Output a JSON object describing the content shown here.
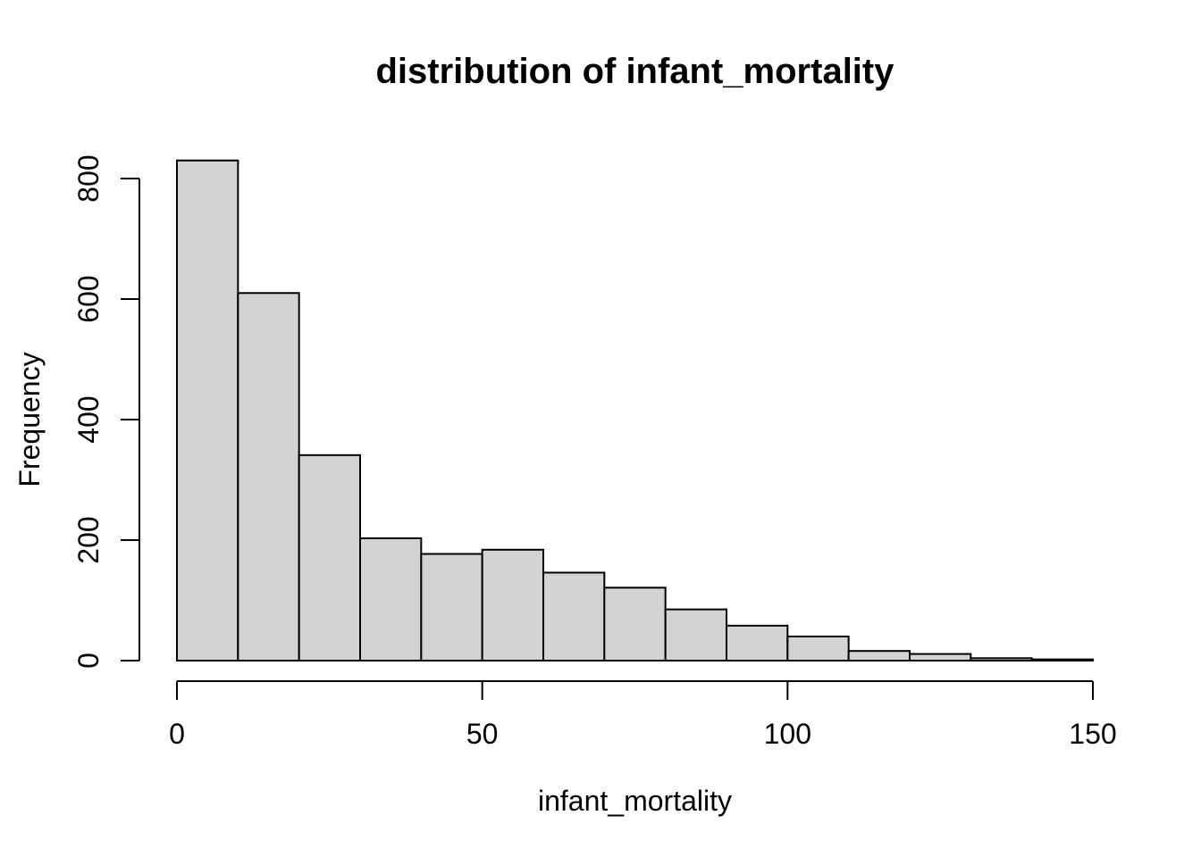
{
  "chart_data": {
    "type": "bar",
    "subtype": "histogram",
    "title": "distribution of infant_mortality",
    "xlabel": "infant_mortality",
    "ylabel": "Frequency",
    "bins": {
      "start": 0,
      "width": 10
    },
    "bin_edges": [
      0,
      10,
      20,
      30,
      40,
      50,
      60,
      70,
      80,
      90,
      100,
      110,
      120,
      130,
      140,
      150
    ],
    "counts": [
      830,
      610,
      341,
      203,
      177,
      184,
      146,
      121,
      85,
      58,
      40,
      16,
      11,
      4,
      2
    ],
    "xlim": [
      0,
      150
    ],
    "ylim": [
      0,
      800
    ],
    "x_ticks": [
      0,
      50,
      100,
      150
    ],
    "x_tick_labels": [
      "0",
      "50",
      "100",
      "150"
    ],
    "y_ticks": [
      0,
      200,
      400,
      600,
      800
    ],
    "y_tick_labels": [
      "0",
      "200",
      "400",
      "600",
      "800"
    ],
    "grid": false,
    "legend": "none",
    "colors": {
      "bar_fill": "#d3d3d3",
      "bar_stroke": "#000000",
      "axis": "#000000",
      "text": "#000000",
      "background": "#ffffff"
    }
  }
}
